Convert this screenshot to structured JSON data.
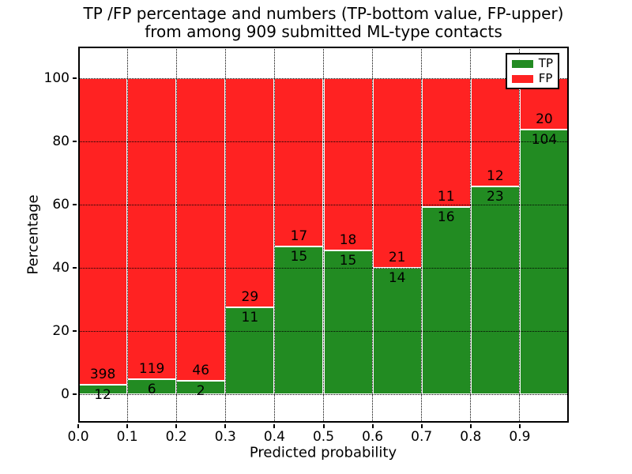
{
  "chart_data": {
    "type": "bar",
    "stacked": true,
    "normalized": "percent",
    "title": "TP /FP percentage and numbers (TP-bottom value, FP-upper)\nfrom among 909 submitted ML-type contacts",
    "title_lines": [
      "TP /FP percentage and numbers (TP-bottom value, FP-upper)",
      "from among 909 submitted ML-type contacts"
    ],
    "xlabel": "Predicted probability",
    "ylabel": "Percentage",
    "total_contacts": 909,
    "categories": [
      "0.0-0.1",
      "0.1-0.2",
      "0.2-0.3",
      "0.3-0.4",
      "0.4-0.5",
      "0.5-0.6",
      "0.6-0.7",
      "0.7-0.8",
      "0.8-0.9",
      "0.9-1.0"
    ],
    "bin_width": 0.1,
    "series": [
      {
        "name": "TP",
        "color": "#228b22",
        "values": [
          12,
          6,
          2,
          11,
          15,
          15,
          14,
          16,
          23,
          104
        ]
      },
      {
        "name": "FP",
        "color": "#ff2222",
        "values": [
          398,
          119,
          46,
          29,
          17,
          18,
          21,
          11,
          12,
          20
        ]
      }
    ],
    "tp_percent_heights": [
      2.93,
      4.8,
      4.17,
      27.5,
      46.88,
      45.45,
      40.0,
      59.26,
      65.71,
      83.87
    ],
    "x_tick_labels": [
      "0.0",
      "0.1",
      "0.2",
      "0.3",
      "0.4",
      "0.5",
      "0.6",
      "0.7",
      "0.8",
      "0.9"
    ],
    "y_tick_values": [
      0,
      20,
      40,
      60,
      80,
      100
    ],
    "xlim": [
      0,
      1
    ],
    "ylim": [
      -9,
      110
    ],
    "grid": {
      "on": true,
      "style": "dotted",
      "color": "#000000"
    },
    "legend": {
      "position": "upper-right",
      "items": [
        {
          "label": "TP",
          "color": "#228b22"
        },
        {
          "label": "FP",
          "color": "#ff2222"
        }
      ]
    },
    "colors": {
      "tp": "#228b22",
      "fp": "#ff2222",
      "background": "#ffffff",
      "frame": "#000000"
    }
  }
}
